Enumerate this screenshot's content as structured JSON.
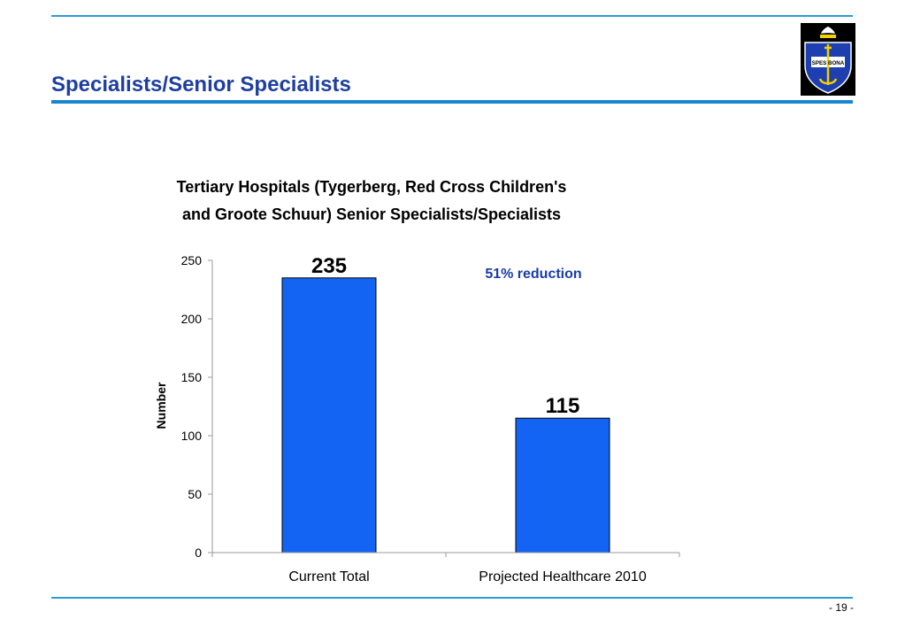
{
  "slide": {
    "title": "Specialists/Senior Specialists",
    "page_number": "- 19 -",
    "logo_text": "SPES BONA"
  },
  "colors": {
    "accent": "#1a86d0",
    "title_text": "#1e3fa0",
    "bar_fill": "#1464f4",
    "annotation_text": "#1a3ca8"
  },
  "chart_data": {
    "type": "bar",
    "title_lines": [
      "Tertiary Hospitals (Tygerberg, Red Cross Children's",
      "and Groote Schuur) Senior Specialists/Specialists"
    ],
    "categories": [
      "Current Total",
      "Projected Healthcare 2010"
    ],
    "values": [
      235,
      115
    ],
    "data_labels": [
      "235",
      "115"
    ],
    "ylabel": "Number",
    "xlabel": "",
    "ylim": [
      0,
      250
    ],
    "yticks": [
      0,
      50,
      100,
      150,
      200,
      250
    ],
    "grid": false,
    "legend": "none",
    "annotation": "51% reduction"
  }
}
